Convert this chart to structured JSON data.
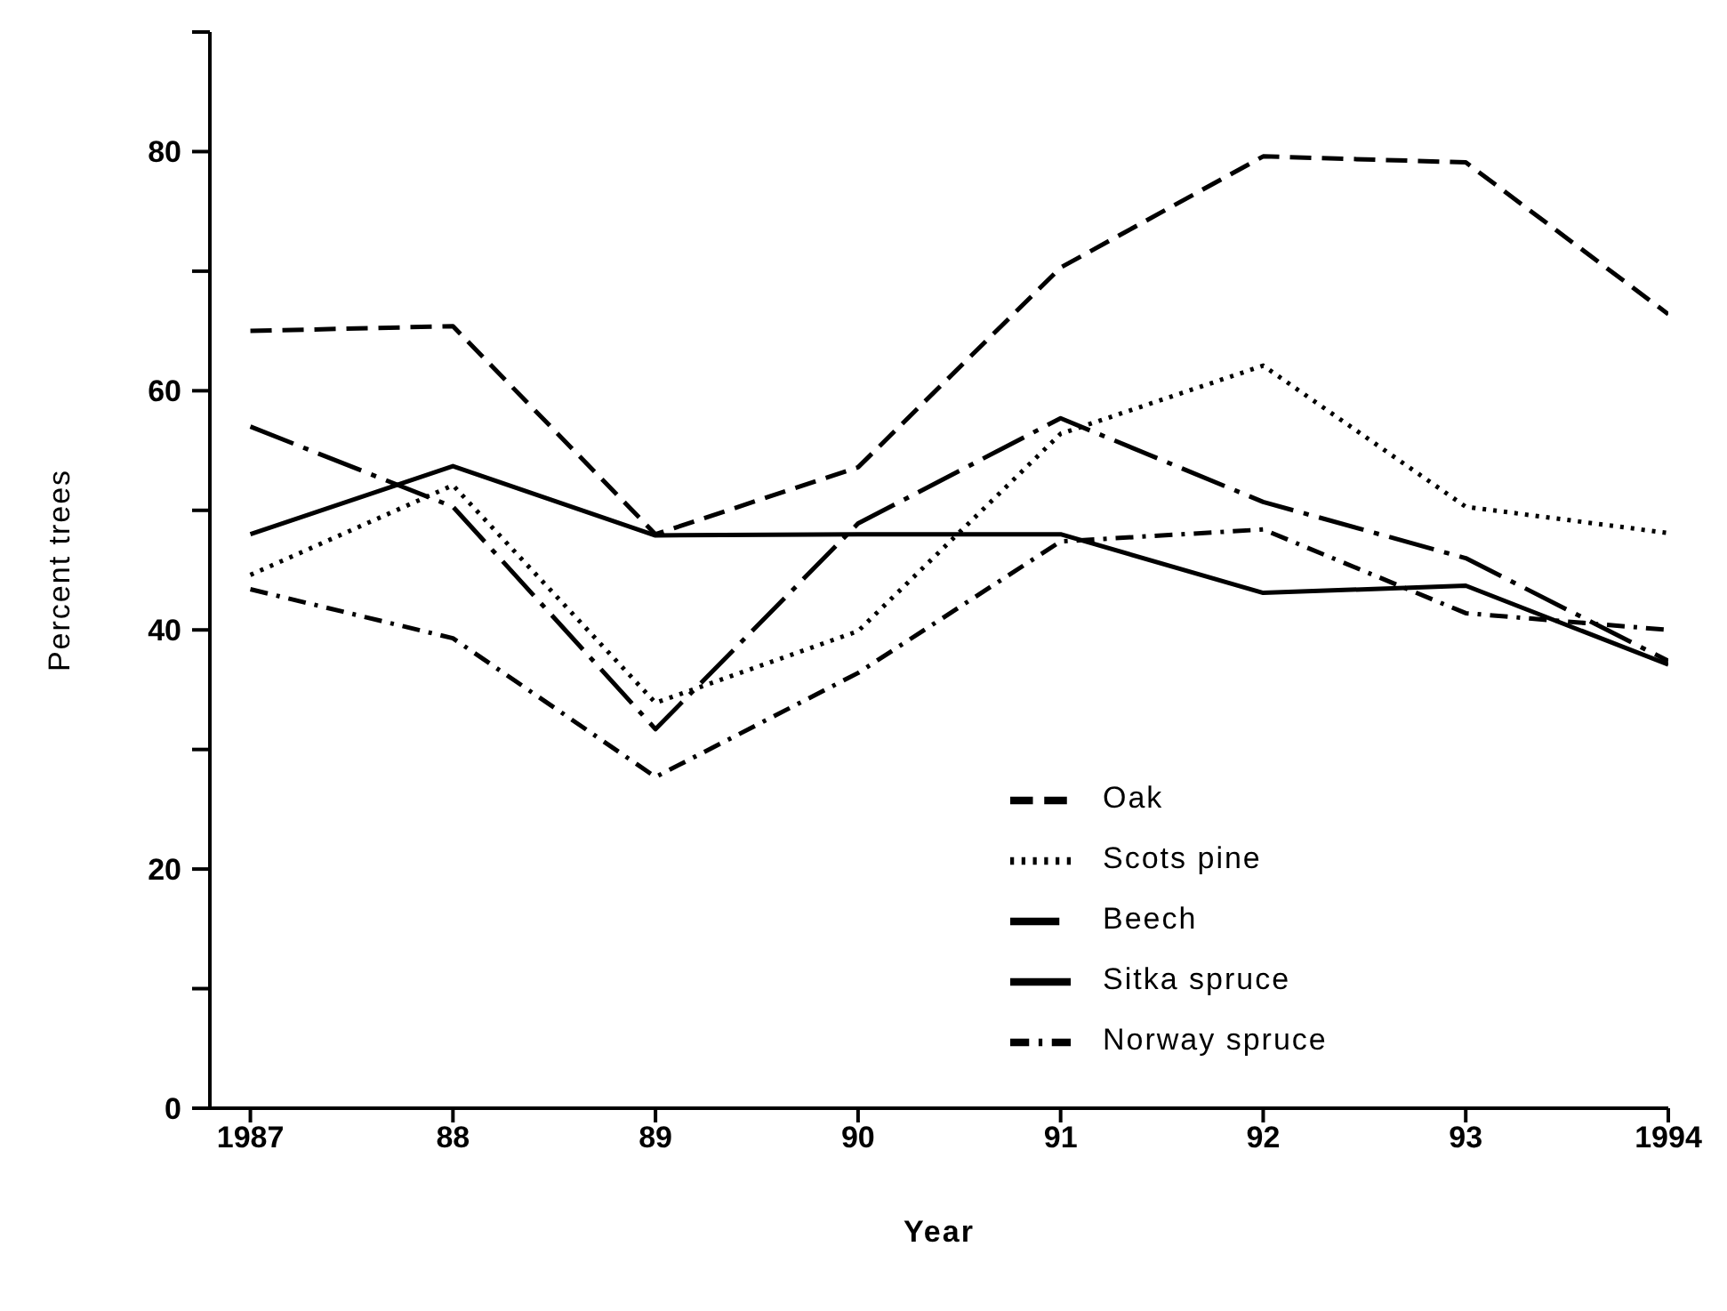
{
  "chart_data": {
    "type": "line",
    "xlabel": "Year",
    "ylabel": "Percent trees",
    "x": [
      1987,
      1988,
      1989,
      1990,
      1991,
      1992,
      1993,
      1994
    ],
    "xlim": [
      1986.8,
      1994
    ],
    "xticks": [
      {
        "value": 1987,
        "label": "1987"
      },
      {
        "value": 1988,
        "label": "88"
      },
      {
        "value": 1989,
        "label": "89"
      },
      {
        "value": 1990,
        "label": "90"
      },
      {
        "value": 1991,
        "label": "91"
      },
      {
        "value": 1992,
        "label": "92"
      },
      {
        "value": 1993,
        "label": "93"
      },
      {
        "value": 1994,
        "label": "1994"
      }
    ],
    "ylim": [
      0,
      90
    ],
    "yticks": [
      0,
      {
        "value": 10,
        "label": null
      },
      20,
      {
        "value": 30,
        "label": null
      },
      40,
      {
        "value": 50,
        "label": null
      },
      60,
      {
        "value": 70,
        "label": null
      },
      80,
      {
        "value": 90,
        "label": null
      }
    ],
    "grid": false,
    "legend": "bottom right",
    "marker": "none",
    "series": [
      {
        "name": "Oak",
        "color": "#000000",
        "line_style": "dashed",
        "values": [
          65,
          65.4,
          48,
          53.6,
          70.3,
          79.6,
          79.1,
          66.4
        ]
      },
      {
        "name": "Scots pine",
        "color": "#000000",
        "line_style": "dotted",
        "values": [
          44.6,
          52.1,
          33.9,
          39.9,
          56.4,
          62.1,
          50.3,
          48.1
        ]
      },
      {
        "name": "Beech",
        "color": "#000000",
        "line_style": "longdashdot",
        "values": [
          57,
          50.3,
          31.7,
          48.9,
          57.7,
          50.7,
          46,
          37.4
        ]
      },
      {
        "name": "Sitka spruce",
        "color": "#000000",
        "line_style": "solid",
        "values": [
          48,
          53.7,
          47.9,
          48,
          48,
          43.1,
          43.7,
          37.1
        ]
      },
      {
        "name": "Norway spruce",
        "color": "#000000",
        "line_style": "dashdot",
        "values": [
          43.4,
          39.3,
          27.7,
          36.4,
          47.4,
          48.4,
          41.4,
          40
        ]
      }
    ]
  }
}
